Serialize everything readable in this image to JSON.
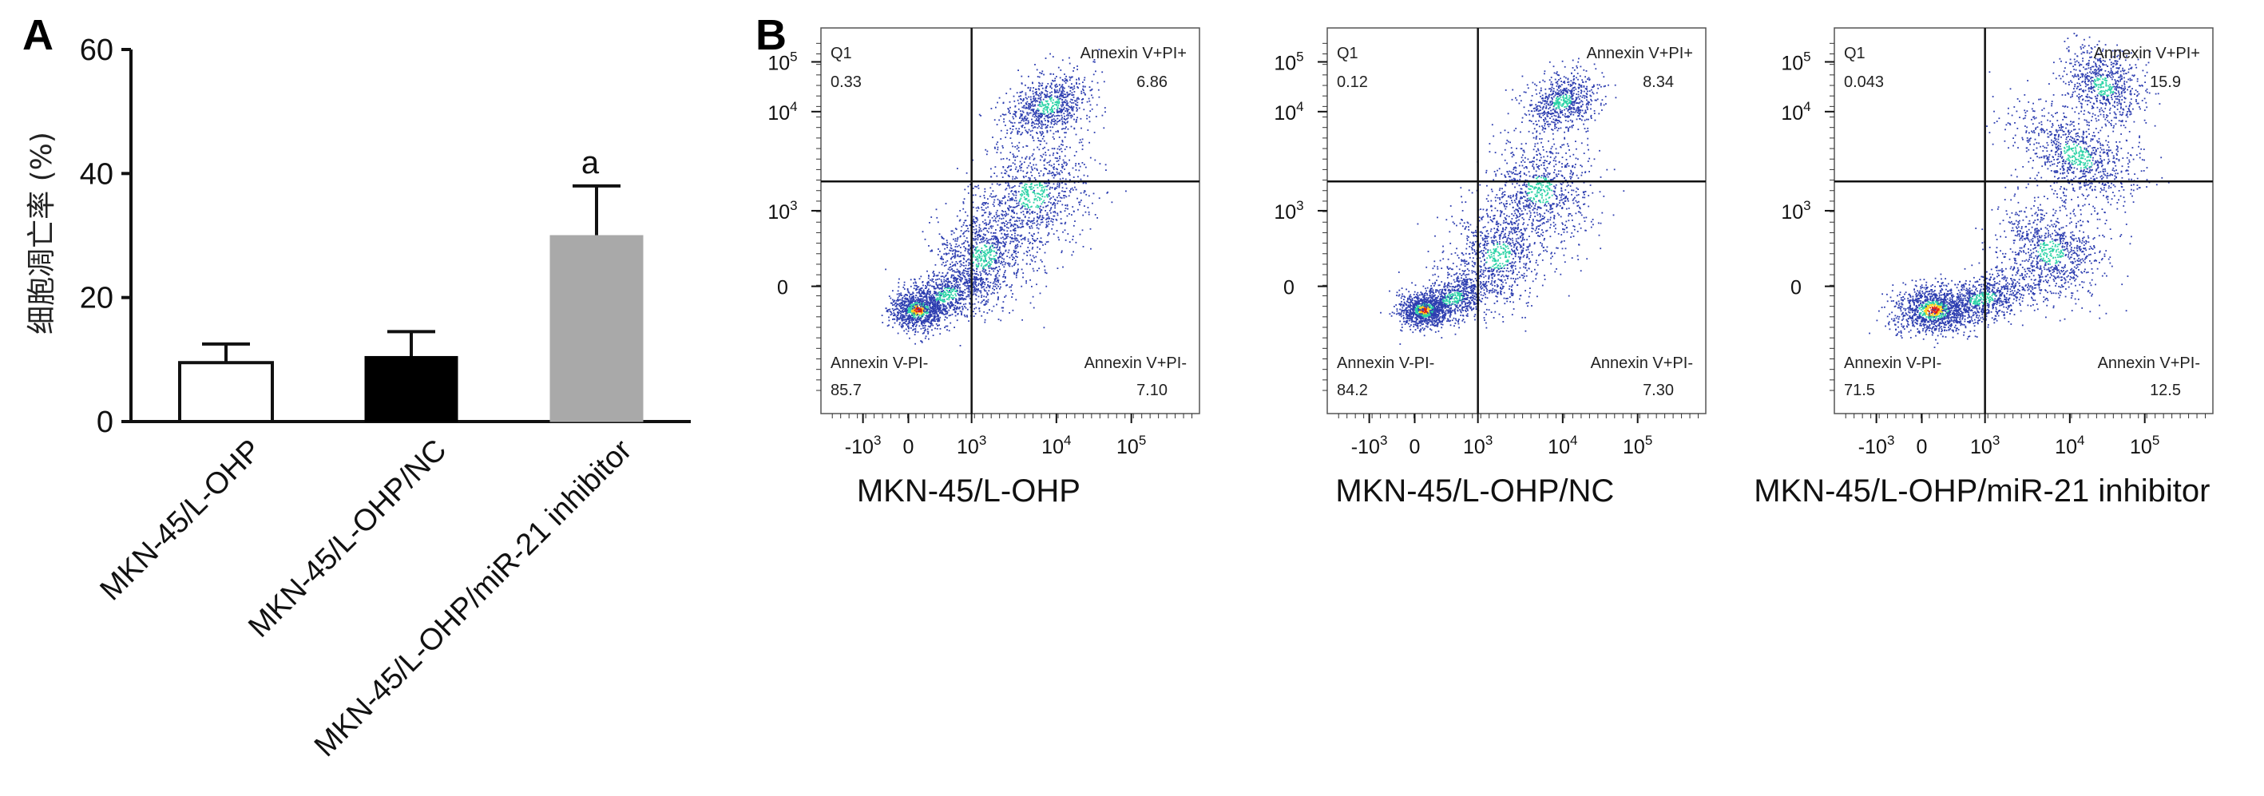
{
  "panel_letters": [
    "A",
    "B"
  ],
  "colors": {
    "bar_fills": [
      "#ffffff",
      "#000000",
      "#a9a9a9"
    ],
    "dot_low": "#2d3eb0",
    "dot_mid": "#2bd3a6",
    "dot_high": "#ffd21f",
    "dot_peak": "#e02010"
  },
  "chart_data": [
    {
      "type": "bar",
      "panel": "A",
      "title": "",
      "xlabel": "",
      "ylabel": "细胞凋亡率 (%)",
      "ylim": [
        0,
        60
      ],
      "yticks": [
        "0",
        "20",
        "40",
        "60"
      ],
      "categories": [
        "MKN-45/L-OHP",
        "MKN-45/L-OHP/NC",
        "MKN-45/L-OHP/miR-21 inhibitor"
      ],
      "values": [
        9.5,
        10.5,
        30
      ],
      "errors": [
        3,
        4,
        8
      ],
      "annotations": [
        "",
        "",
        "a"
      ]
    },
    {
      "type": "scatter",
      "panel": "B",
      "subtype": "flow-cytometry-quadrant",
      "axis_scale": "biexponential",
      "x_tick_labels": [
        [
          "-10",
          "3"
        ],
        [
          "0",
          ""
        ],
        [
          "10",
          "3"
        ],
        [
          "10",
          "4"
        ],
        [
          "10",
          "5"
        ]
      ],
      "y_tick_labels": [
        [
          "0",
          ""
        ],
        [
          "10",
          "3"
        ],
        [
          "10",
          "4"
        ],
        [
          "10",
          "5"
        ]
      ],
      "plots": [
        {
          "xlabel": "MKN-45/L-OHP",
          "quadrants": {
            "Q1": {
              "label": "Q1",
              "value": "0.33"
            },
            "Q2": {
              "label": "Annexin V+PI+",
              "value": "6.86"
            },
            "Q3": {
              "label": "Annexin V+PI-",
              "value": "7.10"
            },
            "Q4": {
              "label": "Annexin V-PI-",
              "value": "85.7"
            }
          }
        },
        {
          "xlabel": "MKN-45/L-OHP/NC",
          "quadrants": {
            "Q1": {
              "label": "Q1",
              "value": "0.12"
            },
            "Q2": {
              "label": "Annexin V+PI+",
              "value": "8.34"
            },
            "Q3": {
              "label": "Annexin V+PI-",
              "value": "7.30"
            },
            "Q4": {
              "label": "Annexin V-PI-",
              "value": "84.2"
            }
          }
        },
        {
          "xlabel": "MKN-45/L-OHP/miR-21 inhibitor",
          "quadrants": {
            "Q1": {
              "label": "Q1",
              "value": "0.043"
            },
            "Q2": {
              "label": "Annexin V+PI+",
              "value": "15.9"
            },
            "Q3": {
              "label": "Annexin V+PI-",
              "value": "12.5"
            },
            "Q4": {
              "label": "Annexin V-PI-",
              "value": "71.5"
            }
          }
        }
      ]
    }
  ]
}
